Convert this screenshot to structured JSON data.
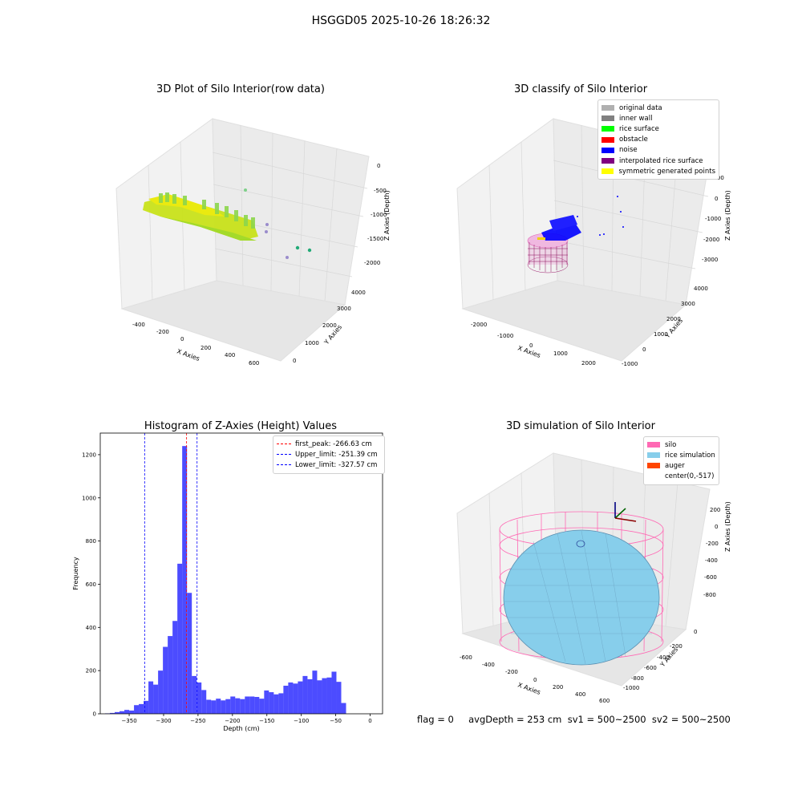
{
  "figure": {
    "title": "HSGGD05 2025-10-26 18:26:32",
    "status_text": "flag = 0     avgDepth = 253 cm  sv1 = 500~2500  sv2 = 500~2500"
  },
  "plots": {
    "raw": {
      "title": "3D Plot of Silo Interior(row data)",
      "xlabel": "X Axies",
      "ylabel": "Y Axies",
      "zlabel": "Z Axies (Depth)",
      "xticks": [
        "-400",
        "-200",
        "0",
        "200",
        "400",
        "600"
      ],
      "yticks": [
        "0",
        "1000",
        "2000",
        "3000",
        "4000"
      ],
      "zticks": [
        "0",
        "-500",
        "-1000",
        "-1500",
        "-2000"
      ]
    },
    "classify": {
      "title": "3D classify of Silo Interior",
      "xlabel": "X Axies",
      "ylabel": "Y Axies",
      "zlabel": "Z Axies (Depth)",
      "xticks": [
        "-2000",
        "-1000",
        "0",
        "1000",
        "2000"
      ],
      "yticks": [
        "-1000",
        "0",
        "1000",
        "2000",
        "3000",
        "4000"
      ],
      "zticks": [
        "1000",
        "0",
        "-1000",
        "-2000",
        "-3000"
      ],
      "legend": [
        {
          "label": "original data",
          "color": "#b0b0b0"
        },
        {
          "label": "inner wall",
          "color": "#808080"
        },
        {
          "label": "rice surface",
          "color": "#00ff00"
        },
        {
          "label": "obstacle",
          "color": "#ff0000"
        },
        {
          "label": "noise",
          "color": "#0000ff"
        },
        {
          "label": "interpolated rice surface",
          "color": "#800080"
        },
        {
          "label": "symmetric generated points",
          "color": "#ffff00"
        }
      ]
    },
    "simulation": {
      "title": "3D simulation of Silo Interior",
      "xlabel": "X Axies",
      "ylabel": "Y Axies",
      "zlabel": "Z Axies (Depth)",
      "xticks": [
        "-600",
        "-400",
        "-200",
        "0",
        "200",
        "400",
        "600"
      ],
      "yticks": [
        "-1000",
        "-800",
        "-600",
        "-400",
        "-200",
        "0"
      ],
      "zticks": [
        "200",
        "0",
        "-200",
        "-400",
        "-600",
        "-800"
      ],
      "legend": [
        {
          "label": "silo",
          "color": "#ff69b4"
        },
        {
          "label": "rice simulation",
          "color": "#87ceeb"
        },
        {
          "label": "auger",
          "color": "#ff4500"
        },
        {
          "label": "center(0,-517)",
          "color": "#ffffff"
        }
      ]
    }
  },
  "chart_data": {
    "type": "bar",
    "title": "Histogram of Z-Axies (Height) Values",
    "xlabel": "Depth (cm)",
    "ylabel": "Frequency",
    "xlim": [
      -392,
      18
    ],
    "ylim": [
      0,
      1300
    ],
    "xticks": [
      -350,
      -300,
      -250,
      -200,
      -150,
      -100,
      -50,
      0
    ],
    "yticks": [
      0,
      200,
      400,
      600,
      800,
      1000,
      1200
    ],
    "bin_width": 7,
    "bin_starts": [
      -385,
      -378,
      -371,
      -364,
      -357,
      -350,
      -343,
      -336,
      -329,
      -322,
      -315,
      -308,
      -301,
      -294,
      -287,
      -280,
      -273,
      -266,
      -259,
      -252,
      -245,
      -238,
      -231,
      -224,
      -217,
      -210,
      -203,
      -196,
      -189,
      -182,
      -175,
      -168,
      -161,
      -154,
      -147,
      -140,
      -133,
      -126,
      -119,
      -112,
      -105,
      -98,
      -91,
      -84,
      -77,
      -70,
      -63,
      -56,
      -49,
      -42,
      -35,
      -28,
      -21,
      -14,
      -7
    ],
    "frequencies": [
      2,
      4,
      8,
      12,
      18,
      15,
      40,
      45,
      60,
      150,
      135,
      200,
      310,
      360,
      430,
      695,
      1240,
      560,
      175,
      145,
      110,
      65,
      62,
      70,
      62,
      68,
      80,
      72,
      68,
      80,
      80,
      78,
      70,
      108,
      100,
      90,
      95,
      130,
      145,
      140,
      150,
      175,
      160,
      200,
      155,
      165,
      168,
      195,
      148,
      50,
      0,
      0,
      0,
      0,
      0
    ],
    "bar_color": "#0000ff",
    "vlines": [
      {
        "label": "first_peak: -266.63 cm",
        "x": -266.63,
        "color": "#ff0000"
      },
      {
        "label": "Upper_limit: -251.39 cm",
        "x": -251.39,
        "color": "#0000ff"
      },
      {
        "label": "Lower_limit: -327.57 cm",
        "x": -327.57,
        "color": "#0000ff"
      }
    ],
    "legend_position": "top-right"
  }
}
